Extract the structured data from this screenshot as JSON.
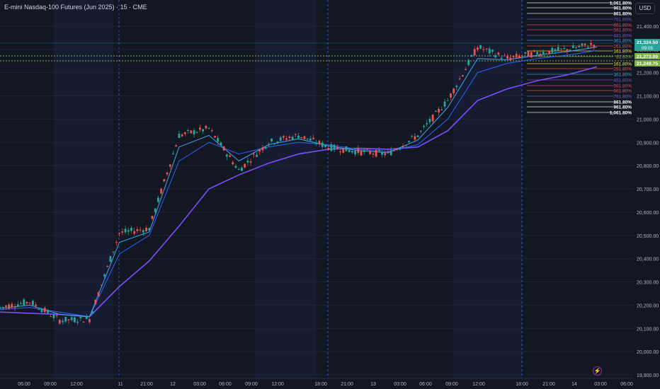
{
  "header": {
    "title": "E-mini Nasdaq-100 Futures (Jun 2025) · 15 · CME",
    "currency": "USD"
  },
  "price_tags": {
    "last": "21,324.50",
    "countdown": "09:05",
    "level_a": "21,273.00",
    "level_b": "21,249.75"
  },
  "fib_labels": [
    "1,061.80%",
    "961.80%",
    "861.80%",
    "761.80%",
    "661.80%",
    "561.80%",
    "461.80%",
    "361.80%",
    "261.80%",
    "161.80%",
    "61.80%",
    "161.80%",
    "261.80%",
    "361.80%",
    "461.80%",
    "561.80%",
    "661.80%",
    "761.80%",
    "861.80%",
    "961.80%",
    "1,061.80%"
  ],
  "colors": {
    "background": "#131722",
    "session_shade": "#1a2340",
    "bull": "#26a69a",
    "bear": "#ef5350",
    "ma_slow": "#7c4dff",
    "ma_mid": "#2962ff",
    "ma_fast": "#42a5f5",
    "level_green": "#7cb342",
    "last_tag": "#26a69a"
  },
  "chart_data": {
    "type": "line",
    "title": "E-mini Nasdaq-100 Futures (Jun 2025) · 15 · CME",
    "xlabel": "",
    "ylabel": "",
    "ylim": [
      19900,
      21500
    ],
    "y_ticks": [
      "21,400.00",
      "21,300.00",
      "21,200.00",
      "21,100.00",
      "21,000.00",
      "20,900.00",
      "20,800.00",
      "20,700.00",
      "20,600.00",
      "20,500.00",
      "20,400.00",
      "20,300.00",
      "20,200.00",
      "20,100.00",
      "20,000.00",
      "19,900.00"
    ],
    "x_ticks": [
      "06:00",
      "09:00",
      "12:00",
      "11",
      "21:00",
      "12",
      "03:00",
      "06:00",
      "09:00",
      "12:00",
      "18:00",
      "21:00",
      "13",
      "03:00",
      "06:00",
      "09:00",
      "12:00",
      "18:00",
      "21:00",
      "14",
      "03:00",
      "06:00"
    ],
    "price_points": [
      {
        "x": "06:00",
        "y": 20190
      },
      {
        "x": "09:00",
        "y": 20215
      },
      {
        "x": "12:00",
        "y": 20135
      },
      {
        "x": "11",
        "y": 20140
      },
      {
        "x": "21:00",
        "y": 20510
      },
      {
        "x": "12",
        "y": 20530
      },
      {
        "x": "03:00",
        "y": 20930
      },
      {
        "x": "06:00",
        "y": 20960
      },
      {
        "x": "09:00",
        "y": 20780
      },
      {
        "x": "12:00",
        "y": 20900
      },
      {
        "x": "18:00",
        "y": 20930
      },
      {
        "x": "21:00",
        "y": 20880
      },
      {
        "x": "13",
        "y": 20860
      },
      {
        "x": "03:00",
        "y": 20850
      },
      {
        "x": "06:00",
        "y": 20930
      },
      {
        "x": "09:00",
        "y": 21080
      },
      {
        "x": "12:00",
        "y": 21310
      },
      {
        "x": "18:00",
        "y": 21260
      },
      {
        "x": "21:00",
        "y": 21285
      },
      {
        "x": "14",
        "y": 21300
      },
      {
        "x": "03:00",
        "y": 21324.5
      }
    ],
    "series": [
      {
        "type": "moving-average",
        "color": "#7c4dff",
        "values": [
          20170,
          20165,
          20160,
          20150,
          20280,
          20390,
          20540,
          20700,
          20760,
          20810,
          20850,
          20870,
          20875,
          20870,
          20880,
          20950,
          21080,
          21130,
          21165,
          21190,
          21225
        ]
      },
      {
        "type": "moving-average",
        "color": "#2962ff",
        "values": [
          20180,
          20190,
          20170,
          20150,
          20420,
          20500,
          20820,
          20900,
          20850,
          20880,
          20900,
          20890,
          20870,
          20860,
          20890,
          21000,
          21200,
          21240,
          21260,
          21275,
          21295
        ]
      },
      {
        "type": "moving-average",
        "color": "#42a5f5",
        "values": [
          20185,
          20200,
          20160,
          20150,
          20470,
          20515,
          20880,
          20930,
          20820,
          20890,
          20915,
          20885,
          20865,
          20855,
          20910,
          21050,
          21260,
          21255,
          21275,
          21290,
          21310
        ]
      }
    ]
  }
}
